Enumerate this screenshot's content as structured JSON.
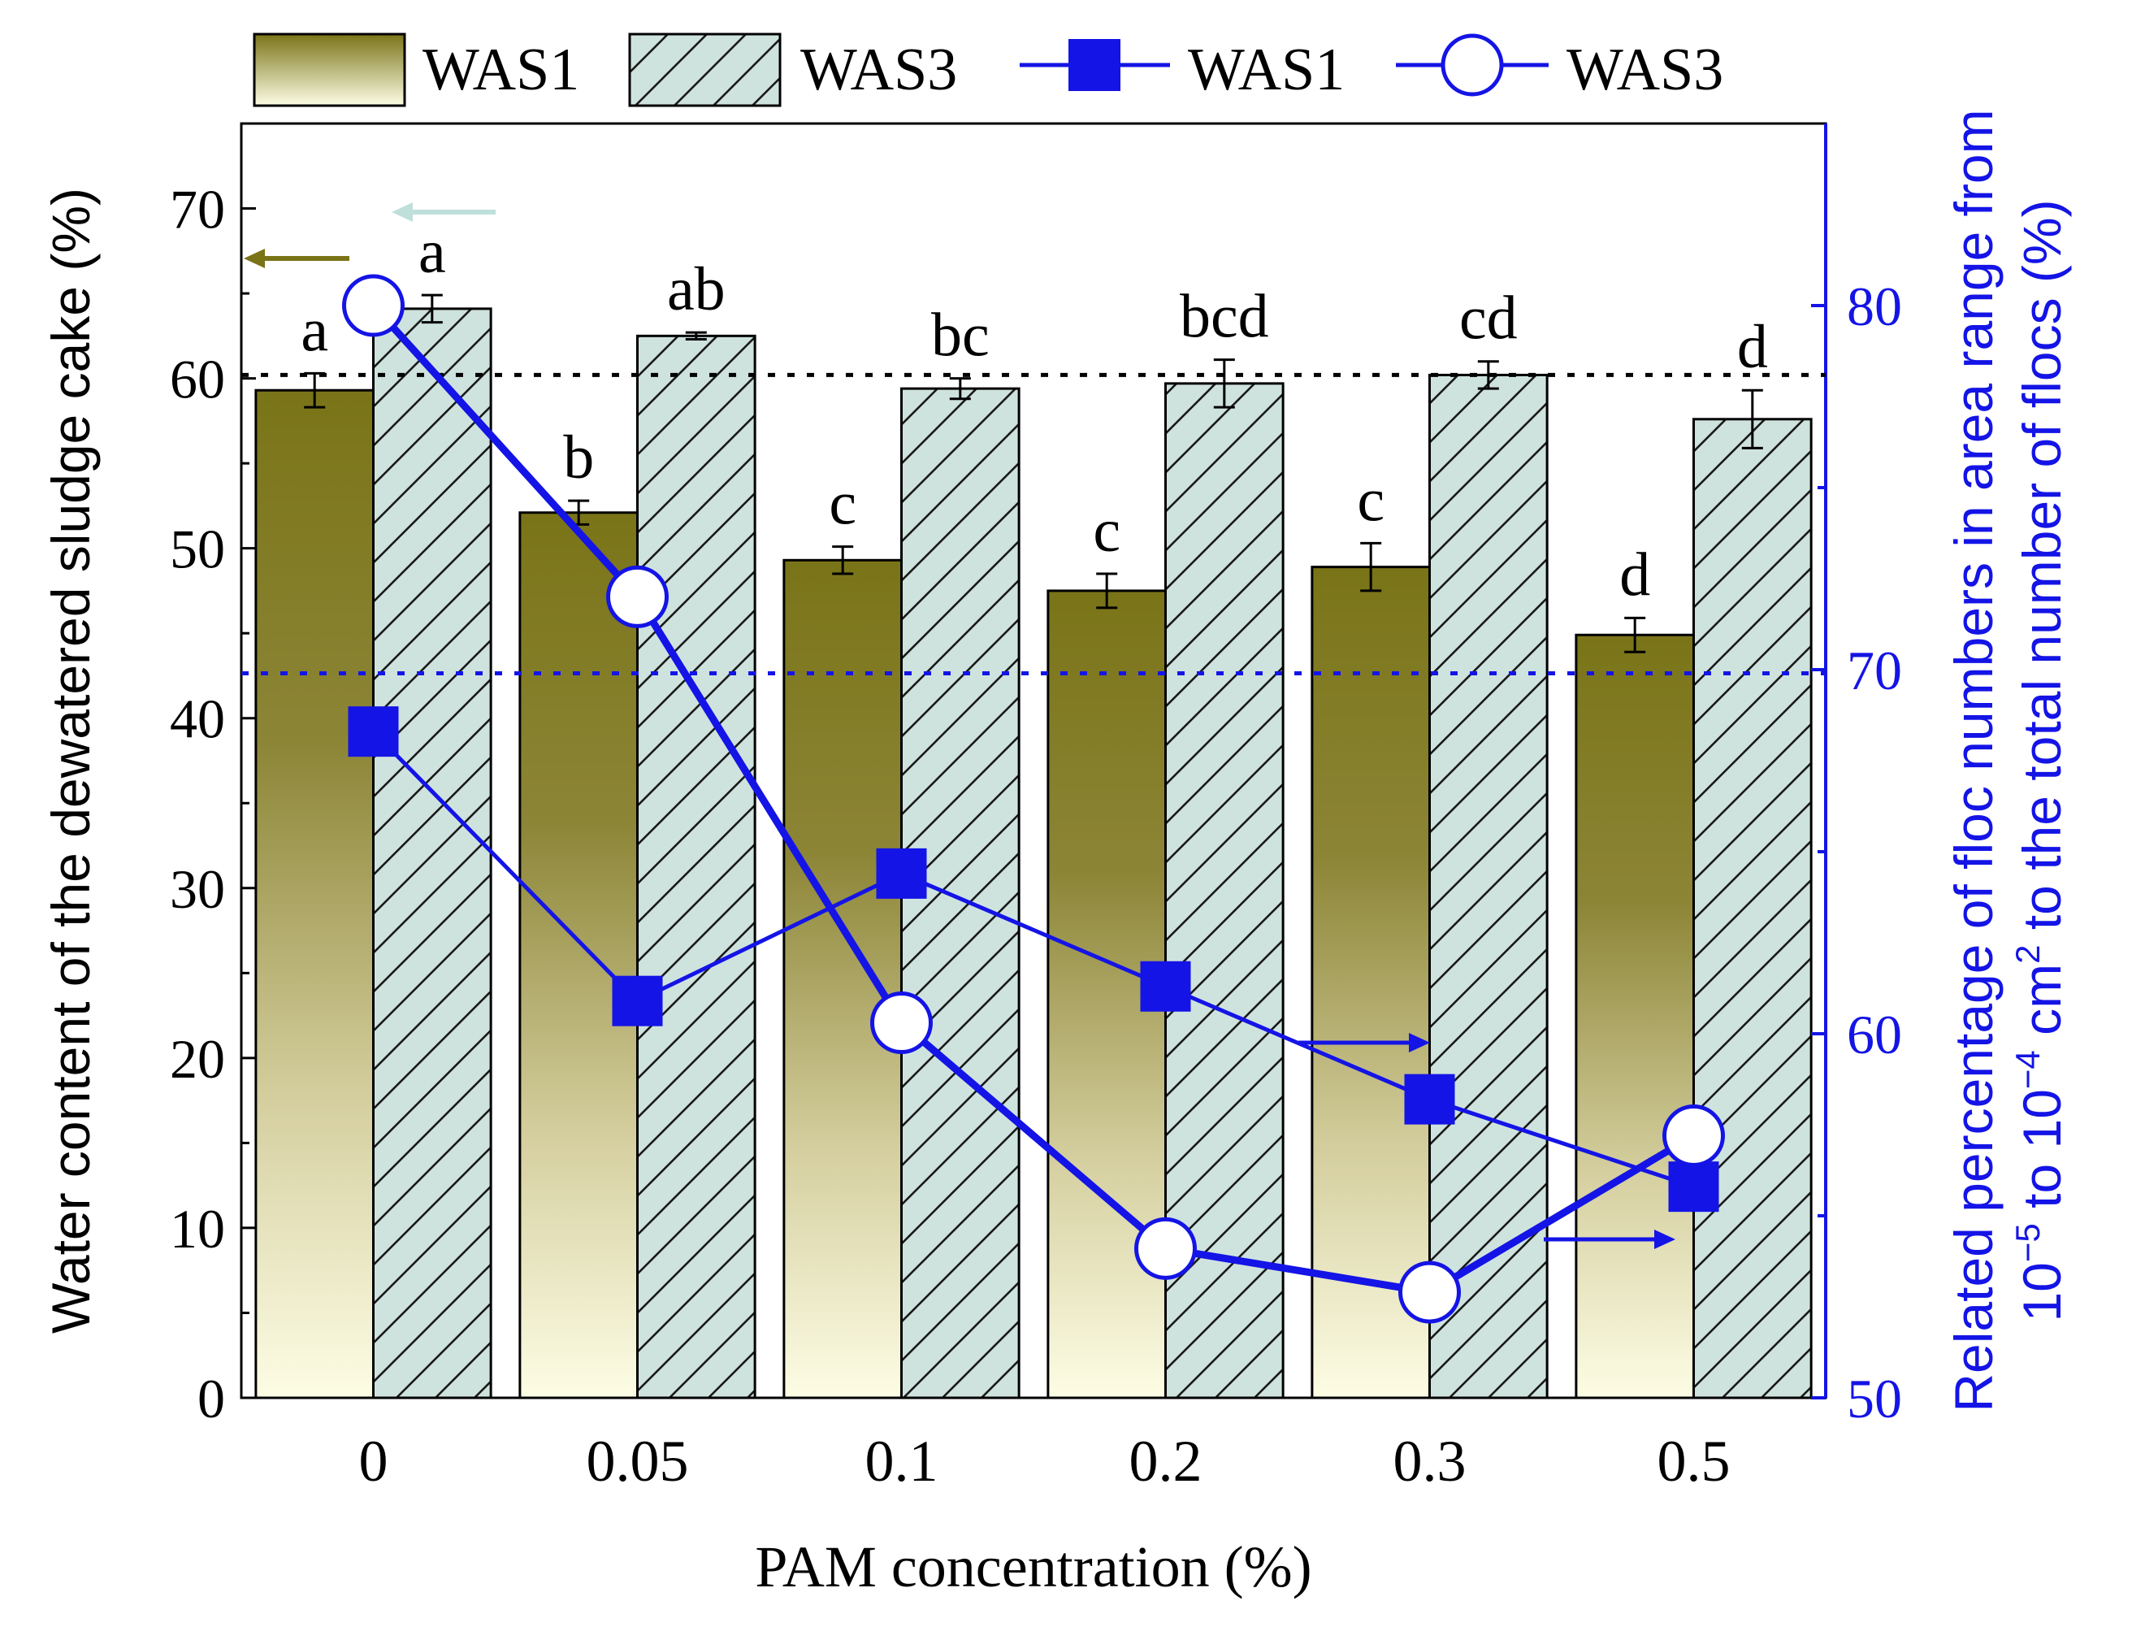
{
  "chart_data": {
    "type": "bar+line (dual axis)",
    "categories": [
      "0",
      "0.05",
      "0.1",
      "0.2",
      "0.3",
      "0.5"
    ],
    "xlabel": "PAM concentration (%)",
    "ylabel_left": "Water content of the dewatered sludge cake (%)",
    "ylabel_right_line1": "Related percentage of  floc numbers in area range from",
    "ylabel_right_line2": {
      "a": "10",
      "a_sup": "−5",
      "b": " to 10",
      "b_sup": "−4",
      "c": " cm",
      "c_sup": "2",
      "d": " to the total number of flocs (%)"
    },
    "ylim_left": [
      0,
      75
    ],
    "yticks_left": [
      0,
      10,
      20,
      30,
      40,
      50,
      60,
      70
    ],
    "ylim_right": [
      50,
      85
    ],
    "yticks_right": [
      50,
      60,
      70,
      80
    ],
    "bar_series": [
      {
        "name": "WAS1",
        "values": [
          59.3,
          52.1,
          49.3,
          47.5,
          48.9,
          44.9
        ],
        "errors": [
          1.0,
          0.7,
          0.8,
          1.0,
          1.4,
          1.0
        ],
        "labels": [
          "a",
          "b",
          "c",
          "c",
          "c",
          "d"
        ],
        "color_top": "#7a7418",
        "color_bottom": "#fdfde5"
      },
      {
        "name": "WAS3",
        "values": [
          64.1,
          62.5,
          59.4,
          59.7,
          60.2,
          57.6
        ],
        "errors": [
          0.8,
          0.2,
          0.6,
          1.4,
          0.8,
          1.7
        ],
        "labels": [
          "a",
          "ab",
          "bc",
          "bcd",
          "cd",
          "d"
        ],
        "color": "#cfe3de",
        "hatch": "diagonal"
      }
    ],
    "line_series": [
      {
        "name": "WAS1",
        "axis": "right",
        "marker": "filled-square",
        "values": [
          68.3,
          60.9,
          64.4,
          61.3,
          58.2,
          55.8
        ],
        "color": "#1414e6"
      },
      {
        "name": "WAS3",
        "axis": "right",
        "marker": "open-circle",
        "values": [
          80.0,
          72.0,
          60.3,
          54.1,
          52.9,
          57.2
        ],
        "color": "#1414e6"
      }
    ],
    "reference_lines": [
      {
        "axis": "left",
        "value": 60.2,
        "color": "#000000",
        "style": "dotted"
      },
      {
        "axis": "right",
        "value": 69.9,
        "color": "#1414e6",
        "style": "dotted"
      }
    ],
    "legend": [
      "WAS1",
      "WAS3",
      "WAS1",
      "WAS3"
    ],
    "legend_placement": "top",
    "axis_colors": {
      "left": "#000000",
      "right": "#1414e6"
    }
  }
}
